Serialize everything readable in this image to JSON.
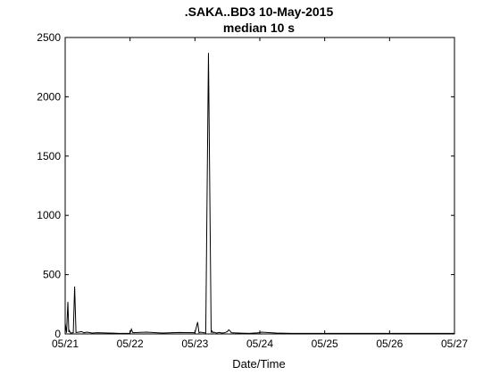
{
  "chart_data": {
    "type": "line",
    "title": ".SAKA..BD3 10-May-2015",
    "subtitle": "median 10 s",
    "xlabel": "Date/Time",
    "ylabel": "",
    "xlim": [
      "05/21 00:00",
      "05/27 00:00"
    ],
    "ylim": [
      0,
      2500
    ],
    "x_ticks": [
      "05/21",
      "05/22",
      "05/23",
      "05/24",
      "05/25",
      "05/26",
      "05/27"
    ],
    "y_ticks": [
      "0",
      "500",
      "1000",
      "1500",
      "2000",
      "2500"
    ],
    "grid": false,
    "series": [
      {
        "color": "#000000",
        "x": [
          "05/21 00:00",
          "05/21 00:30",
          "05/21 01:00",
          "05/21 01:20",
          "05/21 01:30",
          "05/21 02:00",
          "05/21 03:00",
          "05/21 03:30",
          "05/21 04:00",
          "05/21 05:00",
          "05/21 06:00",
          "05/21 07:00",
          "05/21 08:00",
          "05/21 10:00",
          "05/21 12:00",
          "05/21 16:00",
          "05/21 20:00",
          "05/22 00:00",
          "05/22 00:30",
          "05/22 01:00",
          "05/22 06:00",
          "05/22 12:00",
          "05/22 18:00",
          "05/23 00:00",
          "05/23 01:00",
          "05/23 01:30",
          "05/23 02:00",
          "05/23 04:00",
          "05/23 05:00",
          "05/23 06:00",
          "05/23 06:20",
          "05/23 06:40",
          "05/23 07:00",
          "05/23 08:00",
          "05/23 09:00",
          "05/23 10:00",
          "05/23 11:00",
          "05/23 12:00",
          "05/23 12:30",
          "05/23 13:00",
          "05/23 13:30",
          "05/23 16:00",
          "05/23 20:00",
          "05/24 00:00",
          "05/24 00:30",
          "05/24 06:00",
          "05/24 12:00",
          "05/24 18:00",
          "05/25 00:00",
          "05/25 12:00",
          "05/26 00:00",
          "05/26 12:00",
          "05/27 00:00"
        ],
        "y": [
          90,
          10,
          270,
          15,
          30,
          8,
          10,
          400,
          12,
          15,
          20,
          10,
          15,
          8,
          10,
          8,
          5,
          5,
          40,
          10,
          15,
          8,
          12,
          10,
          100,
          10,
          15,
          8,
          2370,
          10,
          25,
          10,
          15,
          8,
          12,
          8,
          10,
          20,
          35,
          25,
          10,
          8,
          5,
          10,
          15,
          8,
          5,
          5,
          5,
          5,
          5,
          5,
          5
        ]
      }
    ]
  }
}
